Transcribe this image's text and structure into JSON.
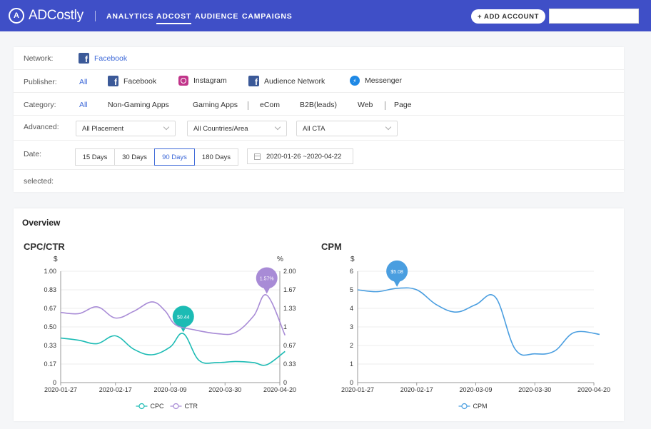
{
  "app": {
    "logo_mark": "A",
    "logo_text": "ADCostly",
    "nav": [
      {
        "label": "ANALYTICS"
      },
      {
        "label": "ADCOST"
      },
      {
        "label": "AUDIENCE"
      },
      {
        "label": "CAMPAIGNS"
      }
    ],
    "add_account_label": "+ ADD ACCOUNT",
    "colors": {
      "nav_bg": "#3f4fc7",
      "accent": "#3f6ad8"
    }
  },
  "filters": {
    "network": {
      "label": "Network:",
      "value": "Facebook",
      "icon": "facebook-icon"
    },
    "publisher": {
      "label": "Publisher:",
      "options": [
        {
          "label": "All"
        },
        {
          "label": "Facebook",
          "icon": "facebook-icon"
        },
        {
          "label": "Instagram",
          "icon": "instagram-icon"
        },
        {
          "label": "Audience Network",
          "icon": "facebook-icon"
        },
        {
          "label": "Messenger",
          "icon": "messenger-icon"
        }
      ]
    },
    "category": {
      "label": "Category:",
      "options": [
        {
          "label": "All"
        },
        {
          "label": "Non-Gaming Apps"
        },
        {
          "label": "Gaming Apps"
        },
        {
          "label": "eCom"
        },
        {
          "label": "B2B(leads)"
        },
        {
          "label": "Web"
        },
        {
          "label": "Page"
        }
      ]
    },
    "advanced": {
      "label": "Advanced:",
      "placement": "All Placement",
      "countries": "All Countries/Area",
      "cta": "All CTA"
    },
    "date": {
      "label": "Date:",
      "ranges": [
        {
          "label": "15 Days"
        },
        {
          "label": "30 Days"
        },
        {
          "label": "90 Days"
        },
        {
          "label": "180 Days"
        }
      ],
      "range_text": "2020-01-26 ~2020-04-22"
    },
    "selected": {
      "label": "selected:"
    }
  },
  "overview": {
    "title": "Overview"
  },
  "chart_data": [
    {
      "type": "line",
      "title": "CPC/CTR",
      "left_unit": "$",
      "right_unit": "%",
      "x_ticks": [
        "2020-01-27",
        "2020-02-17",
        "2020-03-09",
        "2020-03-30",
        "2020-04-20"
      ],
      "left_ticks": [
        "0",
        "0.17",
        "0.33",
        "0.50",
        "0.67",
        "0.83",
        "1.00"
      ],
      "right_ticks": [
        "0",
        "0.33",
        "0.67",
        "1",
        "1.33",
        "1.67",
        "2.00"
      ],
      "left_ylim": [
        0,
        1
      ],
      "right_ylim": [
        0,
        2
      ],
      "series": [
        {
          "name": "CPC",
          "color": "#1cbbb4",
          "axis": "left",
          "points": [
            [
              "2020-01-27",
              0.4
            ],
            [
              "2020-02-03",
              0.38
            ],
            [
              "2020-02-10",
              0.35
            ],
            [
              "2020-02-17",
              0.42
            ],
            [
              "2020-02-24",
              0.3
            ],
            [
              "2020-03-02",
              0.25
            ],
            [
              "2020-03-09",
              0.32
            ],
            [
              "2020-03-14",
              0.44
            ],
            [
              "2020-03-20",
              0.2
            ],
            [
              "2020-03-27",
              0.18
            ],
            [
              "2020-04-03",
              0.19
            ],
            [
              "2020-04-10",
              0.18
            ],
            [
              "2020-04-15",
              0.16
            ],
            [
              "2020-04-22",
              0.28
            ]
          ],
          "marker": {
            "date": "2020-03-14",
            "value": 0.44,
            "label": "$0.44"
          }
        },
        {
          "name": "CTR",
          "color": "#a88bd6",
          "axis": "right",
          "points": [
            [
              "2020-01-27",
              1.26
            ],
            [
              "2020-02-03",
              1.24
            ],
            [
              "2020-02-10",
              1.36
            ],
            [
              "2020-02-17",
              1.16
            ],
            [
              "2020-02-24",
              1.28
            ],
            [
              "2020-03-02",
              1.45
            ],
            [
              "2020-03-07",
              1.29
            ],
            [
              "2020-03-11",
              1.04
            ],
            [
              "2020-03-18",
              0.95
            ],
            [
              "2020-03-27",
              0.88
            ],
            [
              "2020-04-03",
              0.9
            ],
            [
              "2020-04-10",
              1.2
            ],
            [
              "2020-04-15",
              1.57
            ],
            [
              "2020-04-22",
              0.85
            ]
          ],
          "marker": {
            "date": "2020-04-15",
            "value": 1.57,
            "label": "1.57%"
          }
        }
      ],
      "legend": "bottom-center"
    },
    {
      "type": "line",
      "title": "CPM",
      "left_unit": "$",
      "x_ticks": [
        "2020-01-27",
        "2020-02-17",
        "2020-03-09",
        "2020-03-30",
        "2020-04-20"
      ],
      "left_ticks": [
        "0",
        "1",
        "2",
        "3",
        "4",
        "5",
        "6"
      ],
      "left_ylim": [
        0,
        6
      ],
      "series": [
        {
          "name": "CPM",
          "color": "#4a9ee0",
          "axis": "left",
          "points": [
            [
              "2020-01-27",
              5.0
            ],
            [
              "2020-02-03",
              4.9
            ],
            [
              "2020-02-10",
              5.08
            ],
            [
              "2020-02-17",
              5.0
            ],
            [
              "2020-02-24",
              4.2
            ],
            [
              "2020-03-02",
              3.8
            ],
            [
              "2020-03-09",
              4.2
            ],
            [
              "2020-03-16",
              4.6
            ],
            [
              "2020-03-23",
              1.8
            ],
            [
              "2020-03-30",
              1.55
            ],
            [
              "2020-04-06",
              1.7
            ],
            [
              "2020-04-13",
              2.7
            ],
            [
              "2020-04-22",
              2.6
            ]
          ],
          "marker": {
            "date": "2020-02-10",
            "value": 5.08,
            "label": "$5.08"
          }
        }
      ],
      "legend": "bottom-center"
    }
  ]
}
